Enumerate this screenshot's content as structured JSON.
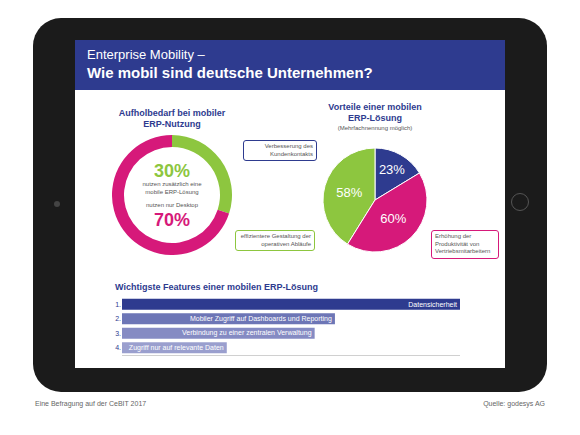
{
  "header": {
    "title": "Enterprise Mobility –",
    "subtitle": "Wie mobil sind deutsche Unternehmen?"
  },
  "footer": {
    "note": "Eine Befragung auf der CeBIT 2017",
    "source": "Quelle: godesys AG"
  },
  "chart_data": [
    {
      "type": "donut",
      "title": "Aufholbedarf bei mobiler ERP-Nutzung",
      "categories": [
        "nutzen zusätzlich eine mobile ERP-Lösung",
        "nutzen nur Desktop"
      ],
      "values": [
        30,
        70
      ],
      "value_labels": [
        "30%",
        "70%"
      ],
      "colors": [
        "#8dc63f",
        "#d6197a"
      ],
      "data_labels": true
    },
    {
      "type": "pie",
      "title": "Vorteile einer mobilen ERP-Lösung",
      "subtitle": "(Mehrfachnennung möglich)",
      "categories": [
        "Verbesserung des Kundenkontakts",
        "effizientere Gestaltung der operativen Abläufe",
        "Erhöhung der Produktivität von Vertriebsmitarbeitern"
      ],
      "values": [
        23,
        58,
        60
      ],
      "value_labels": [
        "23%",
        "58%",
        "60%"
      ],
      "colors": [
        "#2e3b8f",
        "#8dc63f",
        "#d6197a"
      ],
      "data_labels": true
    },
    {
      "type": "bar",
      "orientation": "horizontal",
      "title": "Wichtigste Features einer mobilen ERP-Lösung",
      "categories": [
        "1.",
        "2.",
        "3.",
        "4."
      ],
      "bar_labels": [
        "Datensicherheit",
        "Mobiler Zugriff auf Dashboards und Reporting",
        "Verbindung zu einer zentralen Verwaltung",
        "Zugriff nur auf relevante Daten"
      ],
      "values": [
        100,
        63,
        57,
        31
      ],
      "colors": [
        "#2e3b8f",
        "#6d76b6",
        "#858bc3",
        "#9a9fce"
      ],
      "xlim": [
        0,
        100
      ],
      "tick_labels": "y"
    }
  ]
}
